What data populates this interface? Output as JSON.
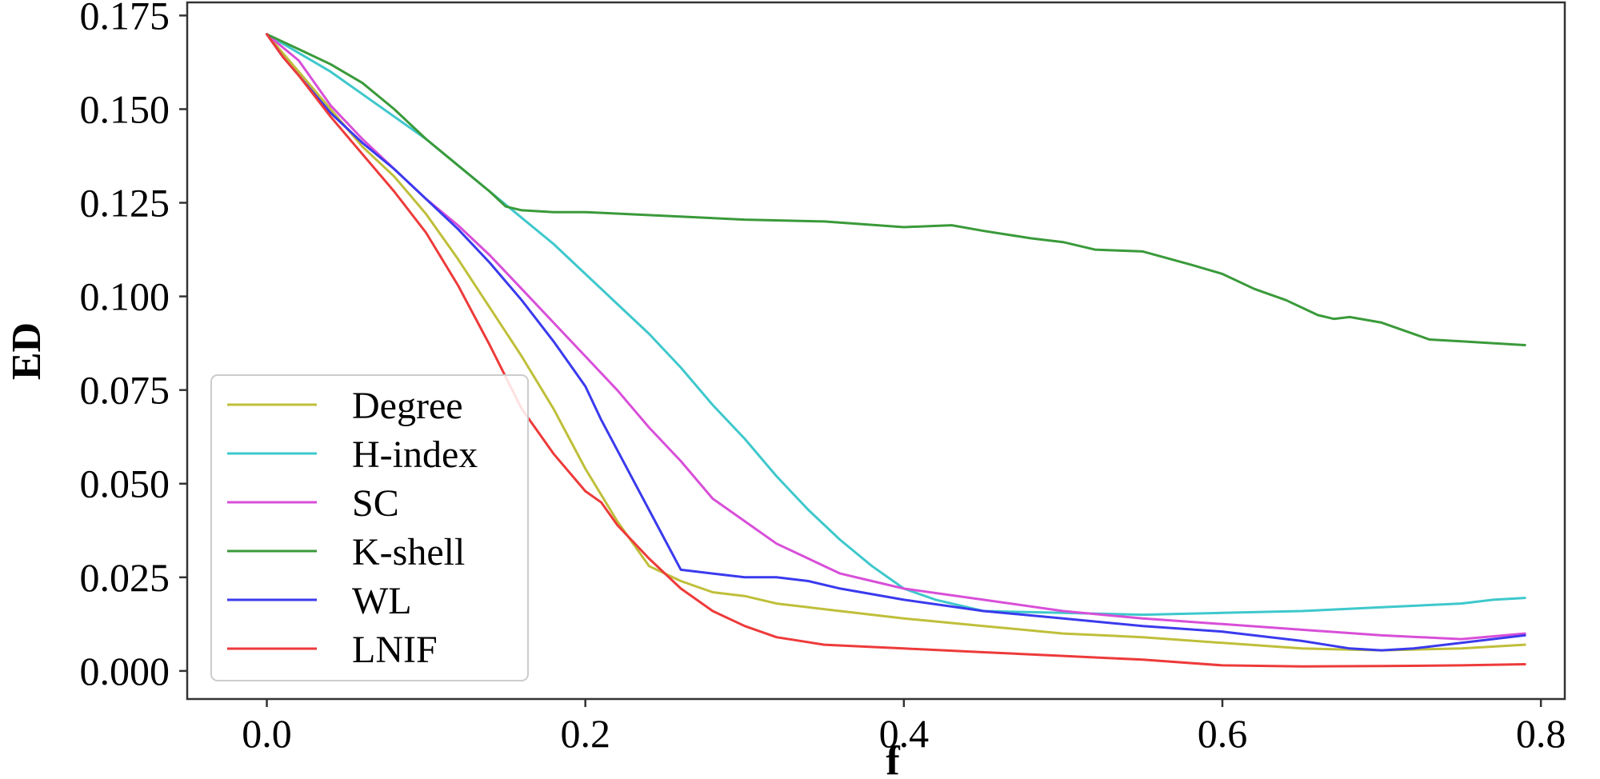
{
  "chart_data": {
    "type": "line",
    "title": "",
    "xlabel": "f",
    "ylabel": "ED",
    "xlim": [
      -0.05,
      0.815
    ],
    "ylim": [
      -0.0075,
      0.1785
    ],
    "xticks": [
      0.0,
      0.2,
      0.4,
      0.6,
      0.8
    ],
    "xtick_labels": [
      "0.0",
      "0.2",
      "0.4",
      "0.6",
      "0.8"
    ],
    "yticks": [
      0.0,
      0.025,
      0.05,
      0.075,
      0.1,
      0.125,
      0.15,
      0.175
    ],
    "ytick_labels": [
      "0.000",
      "0.025",
      "0.050",
      "0.075",
      "0.100",
      "0.125",
      "0.150",
      "0.175"
    ],
    "grid": false,
    "legend_position": "lower-left",
    "series": [
      {
        "name": "Degree",
        "color": "#bfbf3a",
        "x": [
          0.0,
          0.01,
          0.02,
          0.04,
          0.06,
          0.08,
          0.1,
          0.12,
          0.14,
          0.16,
          0.18,
          0.2,
          0.22,
          0.24,
          0.26,
          0.28,
          0.3,
          0.32,
          0.34,
          0.36,
          0.4,
          0.45,
          0.5,
          0.55,
          0.6,
          0.65,
          0.7,
          0.75,
          0.79
        ],
        "values": [
          0.17,
          0.165,
          0.16,
          0.15,
          0.14,
          0.132,
          0.122,
          0.11,
          0.097,
          0.084,
          0.07,
          0.054,
          0.04,
          0.028,
          0.024,
          0.021,
          0.02,
          0.018,
          0.017,
          0.016,
          0.014,
          0.012,
          0.01,
          0.009,
          0.0075,
          0.006,
          0.0055,
          0.006,
          0.007
        ]
      },
      {
        "name": "H-index",
        "color": "#3ec8cc",
        "x": [
          0.0,
          0.02,
          0.04,
          0.06,
          0.08,
          0.1,
          0.12,
          0.14,
          0.16,
          0.18,
          0.2,
          0.22,
          0.24,
          0.26,
          0.28,
          0.3,
          0.32,
          0.34,
          0.36,
          0.38,
          0.4,
          0.42,
          0.45,
          0.5,
          0.55,
          0.6,
          0.65,
          0.7,
          0.75,
          0.77,
          0.79
        ],
        "values": [
          0.17,
          0.165,
          0.16,
          0.154,
          0.148,
          0.142,
          0.135,
          0.128,
          0.121,
          0.114,
          0.106,
          0.098,
          0.09,
          0.081,
          0.071,
          0.062,
          0.052,
          0.043,
          0.035,
          0.028,
          0.022,
          0.019,
          0.016,
          0.0155,
          0.015,
          0.0155,
          0.016,
          0.017,
          0.018,
          0.019,
          0.0195
        ]
      },
      {
        "name": "SC",
        "color": "#d84fd8",
        "x": [
          0.0,
          0.02,
          0.04,
          0.06,
          0.08,
          0.1,
          0.12,
          0.14,
          0.16,
          0.18,
          0.2,
          0.22,
          0.24,
          0.26,
          0.28,
          0.3,
          0.32,
          0.34,
          0.36,
          0.38,
          0.4,
          0.45,
          0.5,
          0.55,
          0.6,
          0.65,
          0.7,
          0.75,
          0.79
        ],
        "values": [
          0.17,
          0.163,
          0.151,
          0.142,
          0.134,
          0.126,
          0.119,
          0.111,
          0.102,
          0.093,
          0.084,
          0.075,
          0.065,
          0.056,
          0.046,
          0.04,
          0.034,
          0.03,
          0.026,
          0.024,
          0.022,
          0.019,
          0.016,
          0.014,
          0.0125,
          0.011,
          0.0095,
          0.0085,
          0.01
        ]
      },
      {
        "name": "K-shell",
        "color": "#3a9a3a",
        "x": [
          0.0,
          0.02,
          0.04,
          0.06,
          0.08,
          0.1,
          0.12,
          0.14,
          0.15,
          0.16,
          0.18,
          0.2,
          0.25,
          0.3,
          0.35,
          0.4,
          0.43,
          0.45,
          0.48,
          0.5,
          0.52,
          0.55,
          0.58,
          0.6,
          0.62,
          0.64,
          0.66,
          0.67,
          0.68,
          0.7,
          0.72,
          0.73,
          0.75,
          0.77,
          0.79
        ],
        "values": [
          0.17,
          0.166,
          0.162,
          0.157,
          0.15,
          0.142,
          0.135,
          0.128,
          0.124,
          0.123,
          0.1225,
          0.1225,
          0.1215,
          0.1205,
          0.12,
          0.1185,
          0.119,
          0.1175,
          0.1155,
          0.1145,
          0.1125,
          0.112,
          0.1085,
          0.106,
          0.102,
          0.099,
          0.095,
          0.094,
          0.0945,
          0.093,
          0.09,
          0.0885,
          0.088,
          0.0875,
          0.087
        ]
      },
      {
        "name": "WL",
        "color": "#3a3aee",
        "x": [
          0.0,
          0.01,
          0.02,
          0.04,
          0.06,
          0.08,
          0.1,
          0.12,
          0.14,
          0.16,
          0.18,
          0.2,
          0.21,
          0.22,
          0.24,
          0.25,
          0.26,
          0.28,
          0.3,
          0.32,
          0.34,
          0.36,
          0.4,
          0.45,
          0.5,
          0.55,
          0.6,
          0.65,
          0.68,
          0.7,
          0.72,
          0.75,
          0.79
        ],
        "values": [
          0.17,
          0.164,
          0.159,
          0.149,
          0.141,
          0.134,
          0.126,
          0.118,
          0.109,
          0.099,
          0.088,
          0.076,
          0.067,
          0.059,
          0.043,
          0.035,
          0.027,
          0.026,
          0.025,
          0.025,
          0.024,
          0.022,
          0.019,
          0.016,
          0.014,
          0.012,
          0.0105,
          0.008,
          0.006,
          0.0055,
          0.006,
          0.0075,
          0.0095
        ]
      },
      {
        "name": "LNIF",
        "color": "#ee3a3a",
        "x": [
          0.0,
          0.01,
          0.02,
          0.04,
          0.06,
          0.08,
          0.1,
          0.12,
          0.14,
          0.16,
          0.18,
          0.2,
          0.21,
          0.22,
          0.24,
          0.26,
          0.28,
          0.3,
          0.32,
          0.35,
          0.4,
          0.45,
          0.5,
          0.55,
          0.6,
          0.65,
          0.7,
          0.75,
          0.79
        ],
        "values": [
          0.17,
          0.164,
          0.159,
          0.148,
          0.138,
          0.128,
          0.117,
          0.103,
          0.087,
          0.07,
          0.058,
          0.048,
          0.045,
          0.039,
          0.03,
          0.022,
          0.016,
          0.012,
          0.009,
          0.007,
          0.006,
          0.005,
          0.004,
          0.003,
          0.0015,
          0.0012,
          0.0013,
          0.0015,
          0.0018
        ]
      }
    ]
  }
}
